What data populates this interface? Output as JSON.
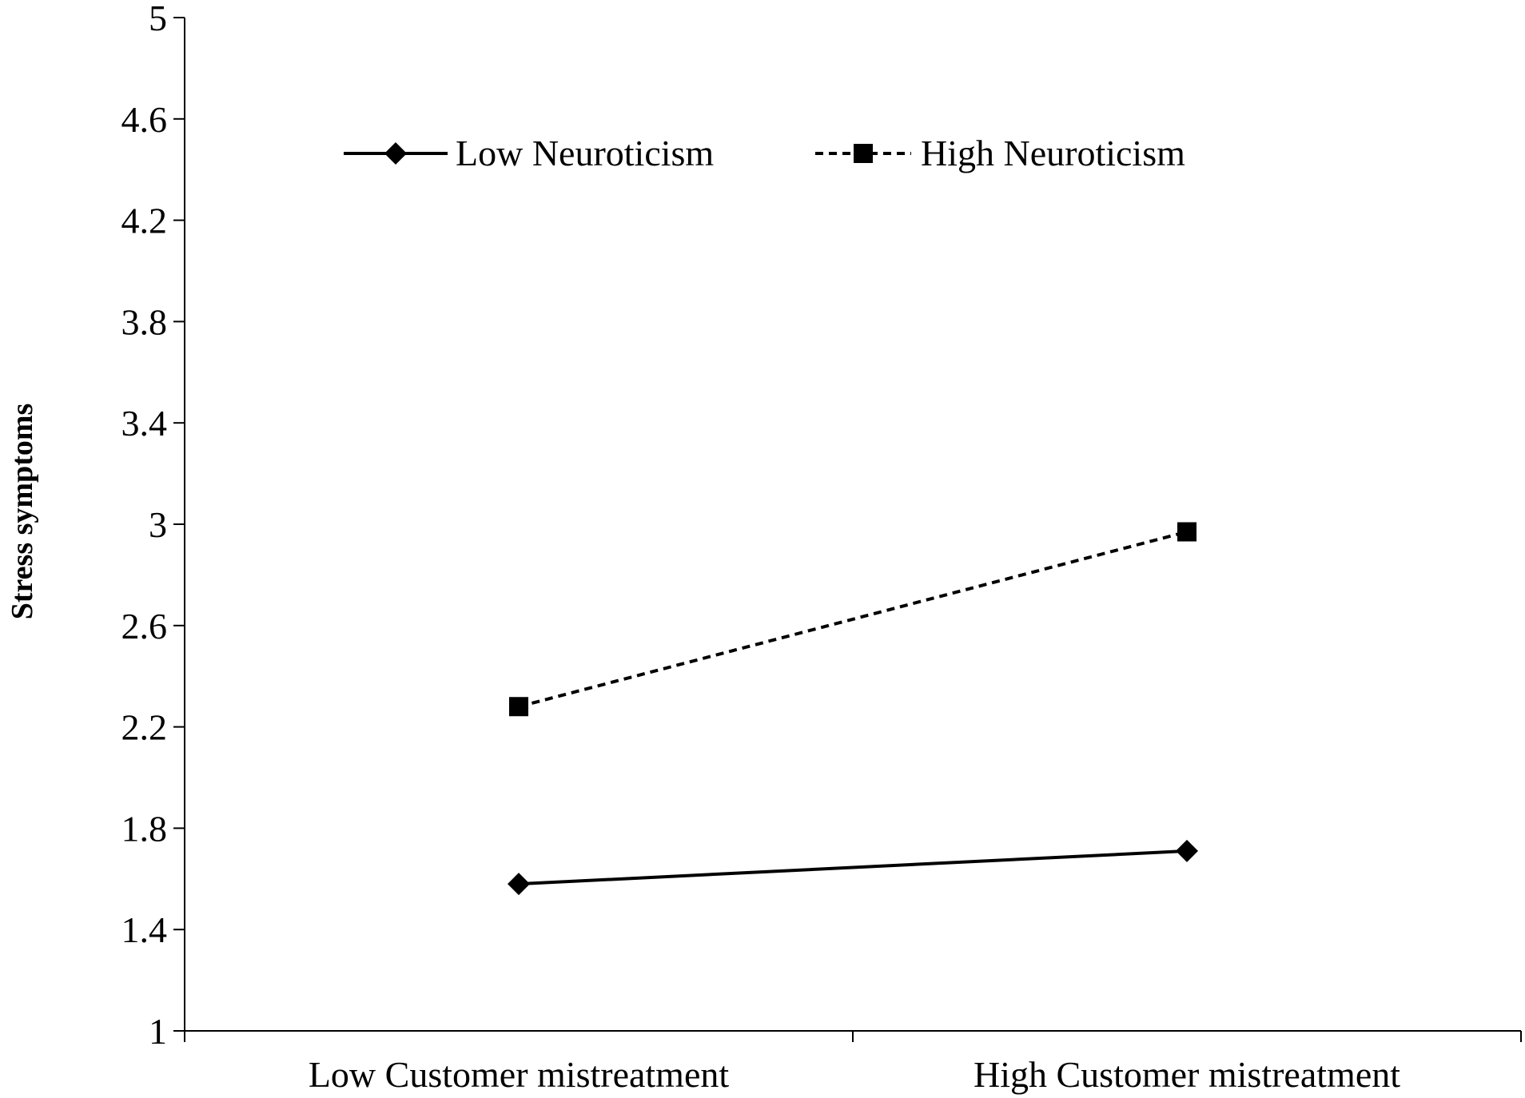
{
  "chart_data": {
    "type": "line",
    "categories": [
      "Low Customer mistreatment",
      "High Customer mistreatment"
    ],
    "series": [
      {
        "name": "Low Neuroticism",
        "values": [
          1.58,
          1.71
        ],
        "line_style": "solid",
        "marker": "diamond",
        "color": "#000000"
      },
      {
        "name": "High Neuroticism",
        "values": [
          2.28,
          2.97
        ],
        "line_style": "dashed",
        "marker": "square",
        "color": "#000000"
      }
    ],
    "ylabel": "Stress symptoms",
    "xlabel": "",
    "ylim": [
      1,
      5
    ],
    "yticks": [
      "1",
      "1.4",
      "1.8",
      "2.2",
      "2.6",
      "3",
      "3.4",
      "3.8",
      "4.2",
      "4.6",
      "5"
    ],
    "grid": false,
    "legend_position": "top"
  }
}
